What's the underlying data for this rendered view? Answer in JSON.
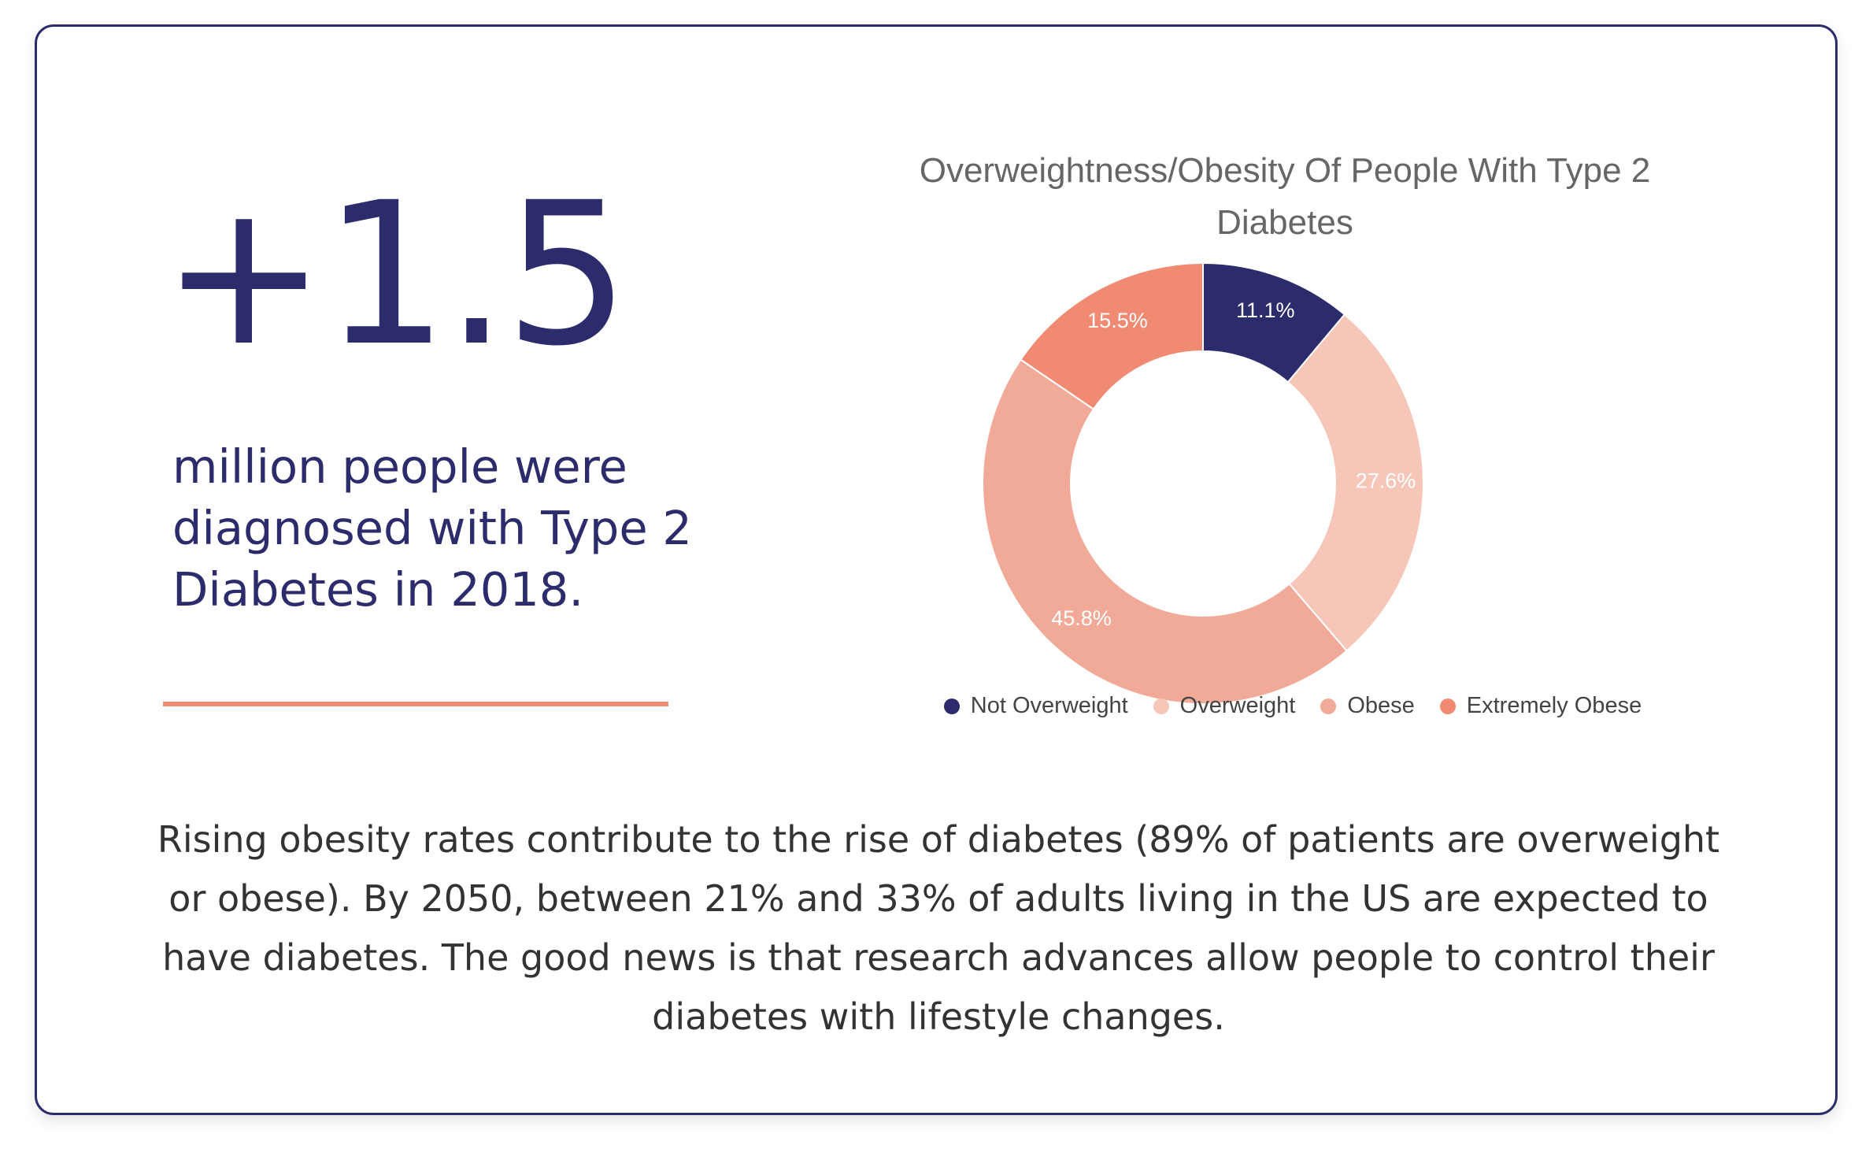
{
  "stat": {
    "number": "+1.5",
    "caption": "million people were diagnosed with Type 2 Diabetes in 2018."
  },
  "body_text": "Rising obesity rates contribute to the rise of diabetes (89% of patients are overweight or obese). By 2050, between 21% and 33% of adults living in the US are expected to have diabetes. The good news is that research advances allow people to control their diabetes with lifestyle changes.",
  "colors": {
    "navy": "#2c2b6b",
    "accent": "#f08a73"
  },
  "chart_data": {
    "type": "pie",
    "variant": "donut",
    "title": "Overweightness/Obesity Of People With Type 2 Diabetes",
    "categories": [
      "Not Overweight",
      "Overweight",
      "Obese",
      "Extremely Obese"
    ],
    "values": [
      11.1,
      27.6,
      45.8,
      15.5
    ],
    "value_labels": [
      "11.1%",
      "27.6%",
      "45.8%",
      "15.5%"
    ],
    "colors": [
      "#2c2b6b",
      "#f6c6b8",
      "#f2aa98",
      "#f08a73"
    ],
    "legend_position": "bottom"
  }
}
